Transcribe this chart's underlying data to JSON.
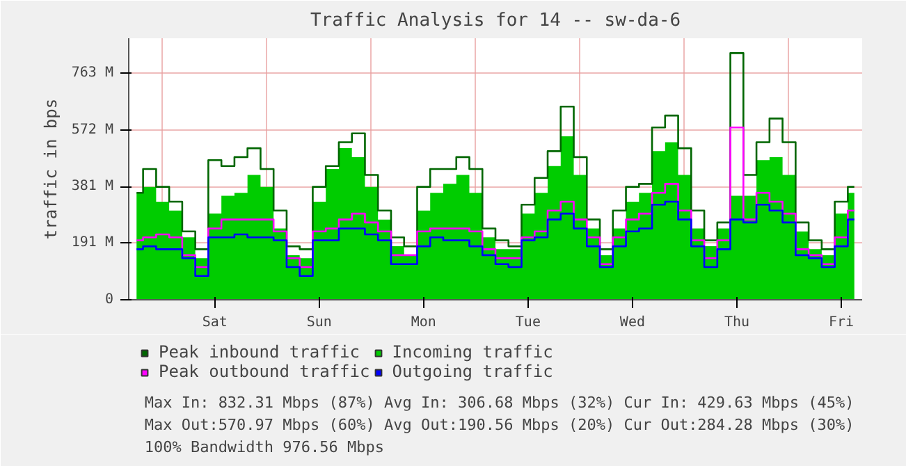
{
  "chart_data": {
    "type": "area",
    "title": "Traffic Analysis for 14 -- sw-da-6",
    "ylabel": "traffic in bps",
    "categories": [
      null,
      null,
      null,
      null,
      null,
      null,
      "Sat",
      null,
      null,
      null,
      null,
      null,
      null,
      null,
      "Sun",
      null,
      null,
      null,
      null,
      null,
      null,
      null,
      "Mon",
      null,
      null,
      null,
      null,
      null,
      null,
      null,
      "Tue",
      null,
      null,
      null,
      null,
      null,
      null,
      null,
      "Wed",
      null,
      null,
      null,
      null,
      null,
      null,
      null,
      "Thu",
      null,
      null,
      null,
      null,
      null,
      null,
      null,
      "Fri",
      null
    ],
    "series": [
      {
        "name": "Peak inbound traffic",
        "type": "step",
        "color": "#006600",
        "values": [
          360,
          440,
          380,
          330,
          230,
          170,
          470,
          450,
          480,
          510,
          440,
          300,
          180,
          170,
          380,
          450,
          530,
          560,
          420,
          300,
          210,
          180,
          380,
          440,
          440,
          480,
          440,
          240,
          200,
          180,
          320,
          410,
          500,
          650,
          480,
          270,
          170,
          300,
          380,
          390,
          580,
          620,
          510,
          300,
          200,
          260,
          830,
          420,
          530,
          610,
          530,
          260,
          200,
          170,
          330,
          380
        ]
      },
      {
        "name": "Incoming traffic",
        "color": "#00cc00",
        "values": [
          360,
          380,
          330,
          300,
          210,
          140,
          290,
          350,
          360,
          420,
          380,
          240,
          150,
          140,
          330,
          440,
          510,
          480,
          380,
          270,
          180,
          150,
          300,
          360,
          390,
          420,
          360,
          210,
          170,
          170,
          290,
          360,
          450,
          550,
          420,
          240,
          150,
          240,
          330,
          360,
          500,
          530,
          420,
          240,
          180,
          240,
          350,
          350,
          470,
          480,
          420,
          230,
          170,
          150,
          290,
          360
        ]
      },
      {
        "name": "Peak outbound traffic",
        "type": "step",
        "color": "#ff00ff",
        "values": [
          200,
          210,
          220,
          210,
          150,
          110,
          240,
          270,
          270,
          270,
          270,
          230,
          140,
          110,
          230,
          240,
          270,
          290,
          260,
          230,
          150,
          150,
          230,
          240,
          240,
          240,
          230,
          170,
          140,
          140,
          210,
          230,
          300,
          330,
          270,
          210,
          120,
          210,
          270,
          290,
          360,
          390,
          300,
          200,
          140,
          200,
          580,
          270,
          360,
          330,
          290,
          170,
          150,
          120,
          210,
          300
        ]
      },
      {
        "name": "Outgoing traffic",
        "type": "step",
        "color": "#0000ff",
        "values": [
          170,
          180,
          170,
          170,
          140,
          80,
          210,
          210,
          220,
          210,
          210,
          200,
          110,
          80,
          200,
          200,
          240,
          240,
          220,
          200,
          120,
          120,
          180,
          210,
          200,
          200,
          180,
          150,
          120,
          110,
          200,
          210,
          270,
          290,
          240,
          180,
          110,
          180,
          230,
          240,
          320,
          330,
          270,
          180,
          110,
          170,
          270,
          260,
          320,
          300,
          260,
          150,
          140,
          110,
          180,
          270
        ]
      }
    ],
    "ylim": [
      0,
      880
    ],
    "yticks": [
      0,
      {
        "value": 191,
        "label": "191 M"
      },
      {
        "value": 381,
        "label": "381 M"
      },
      {
        "value": 572,
        "label": "572 M"
      },
      {
        "value": 763,
        "label": "763 M"
      }
    ],
    "grid": true,
    "legend": "bottom",
    "annotations": [
      "Max In: 832.31 Mbps (87%)  Avg In: 306.68 Mbps (32%)  Cur In: 429.63 Mbps (45%)",
      "Max Out:570.97 Mbps (60%)  Avg Out:190.56 Mbps (20%)  Cur Out:284.28 Mbps (30%)",
      "100% Bandwidth 976.56 Mbps"
    ]
  }
}
